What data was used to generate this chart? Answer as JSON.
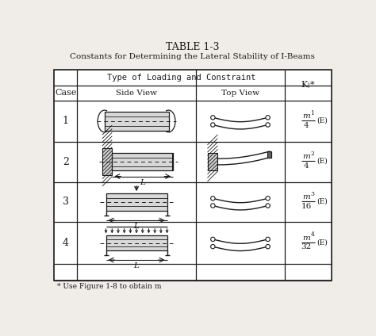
{
  "title": "TABLE 1-3",
  "subtitle": "Constants for Determining the Lateral Stability of I-Beams",
  "col_header": "Type of Loading and Constraint",
  "col_case": "Case",
  "col_side": "Side View",
  "col_top": "Top View",
  "col_k": "K",
  "cases": [
    "1",
    "2",
    "3",
    "4"
  ],
  "k_numerators": [
    "m",
    "m",
    "m",
    "m"
  ],
  "k_subscripts": [
    "1",
    "2",
    "3",
    "4"
  ],
  "k_denominators": [
    "4",
    "4",
    "16",
    "32"
  ],
  "footnote": "* Use Figure 1-8 to obtain m",
  "bg_color": "#f0ede8",
  "table_bg": "#ffffff",
  "line_color": "#1a1a1a",
  "text_color": "#1a1a1a",
  "hatch_color": "#555555"
}
